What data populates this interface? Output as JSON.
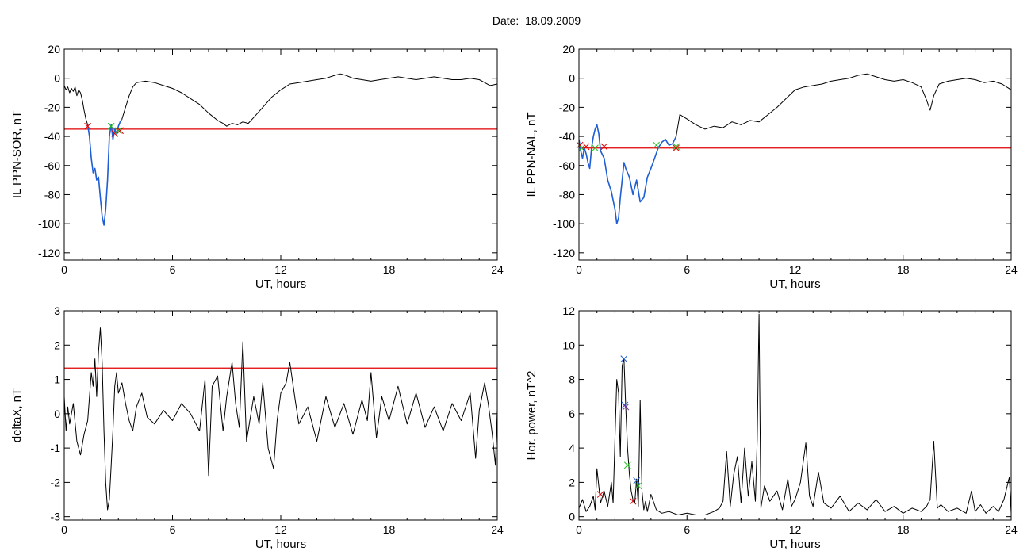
{
  "page": {
    "title": "Date:  18.09.2009"
  },
  "colors": {
    "trace": "#000000",
    "highlight": "#1f5fd6",
    "threshold": "#e00000",
    "marker_red": "#e00000",
    "marker_green": "#22c022",
    "marker_blue": "#1f5fd6",
    "marker_purple": "#7a2a9a"
  },
  "chart_data": [
    {
      "id": "ppn-sor",
      "type": "line",
      "title": "",
      "xlabel": "UT, hours",
      "ylabel": "IL PPN-SOR, nT",
      "xlim": [
        0,
        24
      ],
      "ylim": [
        -125,
        20
      ],
      "xticks": [
        0,
        6,
        12,
        18,
        24
      ],
      "yticks": [
        -120,
        -100,
        -80,
        -60,
        -40,
        -20,
        0,
        20
      ],
      "grid": false,
      "threshold": -35,
      "highlight_range": [
        1.3,
        3.2
      ],
      "series": [
        {
          "x": [
            0,
            0.1,
            0.2,
            0.3,
            0.4,
            0.5,
            0.6,
            0.7,
            0.8,
            0.9,
            1.0,
            1.1,
            1.2,
            1.3,
            1.4,
            1.5,
            1.6,
            1.7,
            1.8,
            1.9,
            2.0,
            2.1,
            2.2,
            2.3,
            2.4,
            2.5,
            2.6,
            2.7,
            2.8,
            2.9,
            3.0,
            3.1,
            3.2,
            3.4,
            3.6,
            3.8,
            4.0,
            4.5,
            5.0,
            5.5,
            6.0,
            6.5,
            7.0,
            7.5,
            8.0,
            8.5,
            8.8,
            9.0,
            9.3,
            9.6,
            9.9,
            10.2,
            10.5,
            11.0,
            11.5,
            12.0,
            12.5,
            13.0,
            13.5,
            14.0,
            14.5,
            15.0,
            15.3,
            15.6,
            16.0,
            16.5,
            17.0,
            17.5,
            18.0,
            18.5,
            19.0,
            19.5,
            20.0,
            20.5,
            21.0,
            21.5,
            22.0,
            22.5,
            23.0,
            23.3,
            23.6,
            24.0
          ],
          "y": [
            -5,
            -8,
            -6,
            -10,
            -7,
            -9,
            -6,
            -12,
            -8,
            -10,
            -15,
            -22,
            -28,
            -32,
            -40,
            -55,
            -65,
            -62,
            -70,
            -68,
            -82,
            -95,
            -101,
            -90,
            -70,
            -40,
            -32,
            -42,
            -35,
            -38,
            -33,
            -30,
            -28,
            -20,
            -12,
            -6,
            -3,
            -2,
            -3,
            -5,
            -7,
            -10,
            -14,
            -18,
            -24,
            -29,
            -31,
            -33,
            -31,
            -32,
            -30,
            -31,
            -27,
            -20,
            -13,
            -8,
            -4,
            -3,
            -2,
            -1,
            0,
            2,
            3,
            2,
            0,
            -1,
            -2,
            -1,
            0,
            1,
            0,
            -1,
            0,
            1,
            0,
            -1,
            -1,
            0,
            -1,
            -3,
            -5,
            -4
          ]
        }
      ],
      "markers": [
        {
          "x": 1.3,
          "y": -33,
          "color": "red"
        },
        {
          "x": 2.6,
          "y": -33,
          "color": "green"
        },
        {
          "x": 2.8,
          "y": -38,
          "color": "red"
        },
        {
          "x": 3.0,
          "y": -36,
          "color": "green"
        },
        {
          "x": 3.1,
          "y": -36,
          "color": "red"
        }
      ]
    },
    {
      "id": "ppn-nal",
      "type": "line",
      "title": "",
      "xlabel": "UT, hours",
      "ylabel": "IL PPN-NAL, nT",
      "xlim": [
        0,
        24
      ],
      "ylim": [
        -125,
        20
      ],
      "xticks": [
        0,
        6,
        12,
        18,
        24
      ],
      "yticks": [
        -120,
        -100,
        -80,
        -60,
        -40,
        -20,
        0,
        20
      ],
      "grid": false,
      "threshold": -48,
      "highlight_range": [
        0,
        5.4
      ],
      "series": [
        {
          "x": [
            0,
            0.1,
            0.2,
            0.3,
            0.4,
            0.5,
            0.6,
            0.7,
            0.8,
            0.9,
            1.0,
            1.1,
            1.2,
            1.4,
            1.6,
            1.8,
            2.0,
            2.1,
            2.2,
            2.3,
            2.4,
            2.5,
            2.6,
            2.8,
            3.0,
            3.2,
            3.4,
            3.6,
            3.8,
            4.0,
            4.2,
            4.4,
            4.6,
            4.8,
            5.0,
            5.2,
            5.4,
            5.6,
            6.0,
            6.5,
            7.0,
            7.5,
            8.0,
            8.5,
            9.0,
            9.5,
            10.0,
            10.5,
            11.0,
            11.5,
            12.0,
            12.5,
            13.0,
            13.5,
            14.0,
            14.5,
            15.0,
            15.5,
            16.0,
            16.5,
            17.0,
            17.5,
            18.0,
            18.5,
            19.0,
            19.3,
            19.5,
            19.7,
            20.0,
            20.5,
            21.0,
            21.5,
            22.0,
            22.5,
            23.0,
            23.5,
            24.0
          ],
          "y": [
            -42,
            -50,
            -55,
            -48,
            -52,
            -58,
            -62,
            -48,
            -40,
            -35,
            -32,
            -38,
            -50,
            -55,
            -70,
            -78,
            -90,
            -100,
            -96,
            -82,
            -70,
            -58,
            -62,
            -68,
            -80,
            -70,
            -85,
            -82,
            -68,
            -62,
            -55,
            -48,
            -44,
            -42,
            -46,
            -45,
            -40,
            -25,
            -28,
            -32,
            -35,
            -33,
            -34,
            -30,
            -32,
            -29,
            -30,
            -25,
            -20,
            -14,
            -8,
            -6,
            -5,
            -4,
            -2,
            -1,
            0,
            2,
            3,
            1,
            -1,
            -2,
            -1,
            -3,
            -6,
            -15,
            -22,
            -12,
            -4,
            -2,
            -1,
            0,
            -1,
            -3,
            -2,
            -4,
            -8
          ]
        }
      ],
      "markers": [
        {
          "x": 0.05,
          "y": -46,
          "color": "red"
        },
        {
          "x": 0.15,
          "y": -48,
          "color": "green"
        },
        {
          "x": 0.4,
          "y": -47,
          "color": "red"
        },
        {
          "x": 0.9,
          "y": -48,
          "color": "green"
        },
        {
          "x": 1.4,
          "y": -47,
          "color": "red"
        },
        {
          "x": 4.3,
          "y": -46,
          "color": "green"
        },
        {
          "x": 5.4,
          "y": -47,
          "color": "green"
        },
        {
          "x": 5.4,
          "y": -48,
          "color": "red"
        }
      ]
    },
    {
      "id": "deltax",
      "type": "line",
      "title": "",
      "xlabel": "UT, hours",
      "ylabel": "deltaX, nT",
      "xlim": [
        0,
        24
      ],
      "ylim": [
        -3.1,
        3
      ],
      "xticks": [
        0,
        6,
        12,
        18,
        24
      ],
      "yticks": [
        -3,
        -2,
        -1,
        0,
        1,
        2,
        3
      ],
      "grid": false,
      "threshold": 1.33,
      "series": [
        {
          "x": [
            0,
            0.1,
            0.2,
            0.3,
            0.5,
            0.7,
            0.9,
            1.1,
            1.3,
            1.5,
            1.6,
            1.7,
            1.8,
            1.9,
            2.0,
            2.1,
            2.2,
            2.3,
            2.4,
            2.5,
            2.6,
            2.7,
            2.8,
            2.9,
            3.0,
            3.2,
            3.4,
            3.6,
            3.8,
            4.0,
            4.3,
            4.6,
            5.0,
            5.5,
            6.0,
            6.5,
            7.0,
            7.5,
            7.8,
            8.0,
            8.2,
            8.5,
            8.8,
            9.0,
            9.3,
            9.5,
            9.7,
            9.9,
            10.1,
            10.5,
            10.8,
            11.0,
            11.3,
            11.6,
            11.8,
            12.0,
            12.3,
            12.5,
            12.8,
            13.0,
            13.5,
            14.0,
            14.5,
            15.0,
            15.5,
            16.0,
            16.5,
            16.8,
            17.0,
            17.3,
            17.6,
            18.0,
            18.5,
            19.0,
            19.5,
            20.0,
            20.5,
            21.0,
            21.5,
            22.0,
            22.5,
            22.8,
            23.0,
            23.3,
            23.5,
            23.7,
            23.9,
            24.0
          ],
          "y": [
            0.5,
            -0.5,
            0.2,
            -0.3,
            0.3,
            -0.8,
            -1.2,
            -0.6,
            -0.2,
            1.2,
            0.8,
            1.6,
            0.5,
            1.8,
            2.5,
            1.5,
            -0.5,
            -2.0,
            -2.8,
            -2.5,
            -1.5,
            -0.5,
            0.8,
            1.2,
            0.6,
            0.9,
            0.3,
            -0.2,
            -0.5,
            0.2,
            0.6,
            -0.1,
            -0.3,
            0.1,
            -0.2,
            0.3,
            0.0,
            -0.5,
            1.0,
            -1.8,
            0.8,
            1.1,
            -0.5,
            0.5,
            1.5,
            0.3,
            -0.4,
            2.1,
            -0.8,
            0.5,
            -0.3,
            0.9,
            -1.0,
            -1.6,
            -0.2,
            0.6,
            0.9,
            1.5,
            0.4,
            -0.3,
            0.2,
            -0.8,
            0.5,
            -0.4,
            0.3,
            -0.6,
            0.4,
            -0.2,
            1.2,
            -0.7,
            0.5,
            -0.2,
            0.8,
            -0.3,
            0.6,
            -0.4,
            0.2,
            -0.5,
            0.3,
            -0.2,
            0.6,
            -1.3,
            0.1,
            0.9,
            0.3,
            -0.5,
            -1.5,
            0.1
          ]
        }
      ],
      "markers": []
    },
    {
      "id": "hor-power",
      "type": "line",
      "title": "",
      "xlabel": "UT, hours",
      "ylabel": "Hor. power, nT^2",
      "xlim": [
        0,
        24
      ],
      "ylim": [
        -0.2,
        12
      ],
      "xticks": [
        0,
        6,
        12,
        18,
        24
      ],
      "yticks": [
        0,
        2,
        4,
        6,
        8,
        10,
        12
      ],
      "grid": false,
      "series": [
        {
          "x": [
            0,
            0.2,
            0.4,
            0.6,
            0.8,
            0.9,
            1.0,
            1.2,
            1.4,
            1.6,
            1.8,
            1.9,
            2.0,
            2.1,
            2.2,
            2.3,
            2.4,
            2.5,
            2.6,
            2.7,
            2.8,
            2.9,
            3.0,
            3.1,
            3.2,
            3.3,
            3.4,
            3.5,
            3.6,
            3.7,
            3.8,
            4.0,
            4.3,
            4.6,
            5.0,
            5.5,
            6.0,
            6.5,
            7.0,
            7.5,
            7.8,
            8.0,
            8.2,
            8.4,
            8.6,
            8.8,
            9.0,
            9.2,
            9.4,
            9.6,
            9.8,
            9.9,
            10.0,
            10.1,
            10.3,
            10.6,
            11.0,
            11.3,
            11.6,
            11.8,
            12.0,
            12.3,
            12.6,
            12.8,
            13.0,
            13.3,
            13.6,
            14.0,
            14.5,
            15.0,
            15.5,
            16.0,
            16.5,
            17.0,
            17.5,
            18.0,
            18.5,
            19.0,
            19.3,
            19.5,
            19.7,
            19.9,
            20.1,
            20.5,
            21.0,
            21.5,
            21.8,
            22.0,
            22.3,
            22.6,
            23.0,
            23.3,
            23.6,
            23.9,
            24.0
          ],
          "y": [
            0.5,
            1.0,
            0.3,
            0.6,
            1.2,
            0.4,
            2.8,
            0.8,
            1.5,
            0.6,
            2.0,
            0.8,
            4.5,
            8.0,
            7.2,
            3.5,
            8.8,
            9.2,
            6.4,
            4.0,
            2.5,
            1.5,
            1.0,
            0.8,
            2.2,
            0.6,
            6.8,
            1.5,
            0.4,
            0.9,
            0.3,
            1.3,
            0.4,
            0.2,
            0.3,
            0.1,
            0.2,
            0.1,
            0.1,
            0.3,
            0.5,
            0.9,
            3.8,
            0.6,
            2.5,
            3.5,
            0.8,
            4.0,
            1.2,
            3.2,
            0.9,
            4.5,
            11.8,
            0.5,
            1.8,
            0.9,
            1.5,
            0.4,
            2.2,
            0.6,
            1.0,
            2.0,
            4.3,
            1.2,
            0.6,
            2.6,
            0.8,
            0.5,
            1.2,
            0.3,
            0.8,
            0.4,
            1.0,
            0.3,
            0.6,
            0.2,
            0.5,
            0.3,
            0.6,
            1.0,
            4.4,
            0.5,
            0.7,
            0.3,
            0.5,
            0.2,
            1.5,
            0.3,
            0.7,
            0.2,
            0.6,
            0.3,
            1.0,
            2.3,
            0.2
          ]
        }
      ],
      "markers": [
        {
          "x": 1.2,
          "y": 1.3,
          "color": "red"
        },
        {
          "x": 2.5,
          "y": 9.2,
          "color": "blue"
        },
        {
          "x": 2.55,
          "y": 6.5,
          "color": "blue"
        },
        {
          "x": 2.6,
          "y": 6.4,
          "color": "purple"
        },
        {
          "x": 2.7,
          "y": 3.0,
          "color": "green"
        },
        {
          "x": 3.0,
          "y": 0.9,
          "color": "red"
        },
        {
          "x": 3.2,
          "y": 2.1,
          "color": "blue"
        },
        {
          "x": 3.3,
          "y": 1.8,
          "color": "green"
        }
      ]
    }
  ]
}
